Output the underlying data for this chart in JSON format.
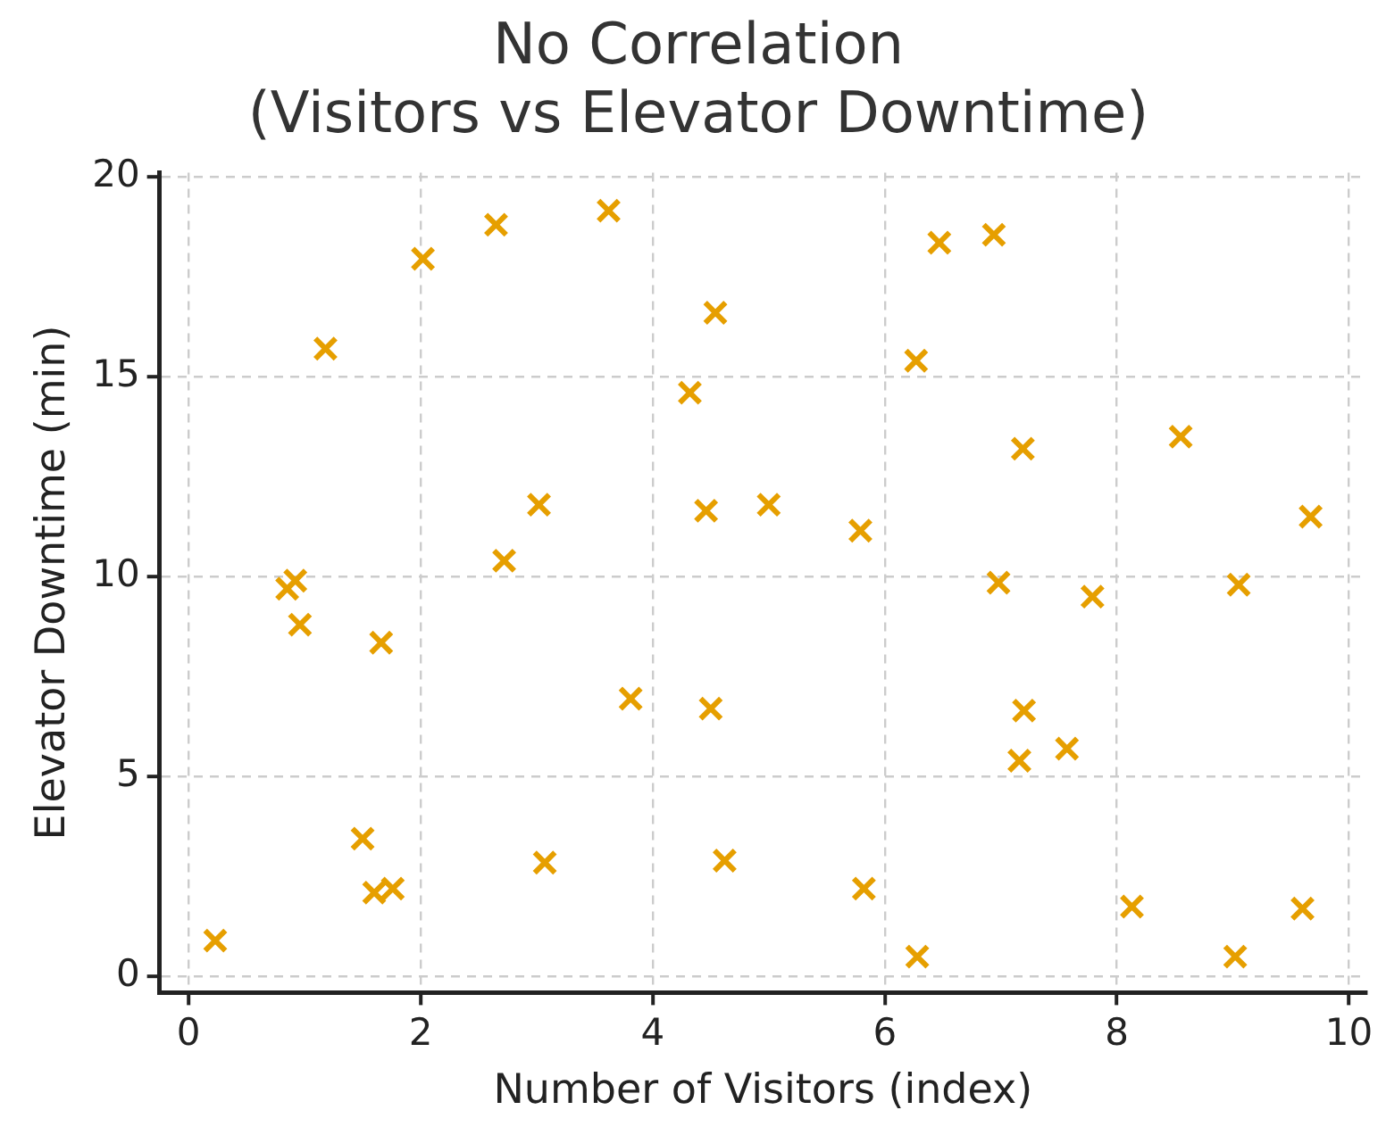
{
  "chart_data": {
    "type": "scatter",
    "title": "No Correlation\n(Visitors vs Elevator Downtime)",
    "xlabel": "Number of Visitors (index)",
    "ylabel": "Elevator Downtime (min)",
    "x": [
      0.23,
      0.85,
      0.92,
      0.96,
      1.18,
      1.66,
      1.5,
      1.6,
      1.76,
      2.02,
      2.65,
      2.72,
      3.02,
      3.07,
      3.62,
      3.81,
      4.32,
      4.46,
      4.5,
      4.54,
      4.62,
      5.0,
      5.79,
      5.82,
      6.27,
      6.28,
      6.47,
      6.94,
      6.98,
      7.16,
      7.2,
      7.19,
      7.57,
      7.79,
      8.13,
      8.55,
      9.05,
      9.02,
      9.6,
      9.67
    ],
    "series": [
      {
        "color": "#e69f00",
        "values": [
          0.9,
          9.7,
          9.9,
          8.8,
          15.7,
          8.35,
          3.45,
          2.1,
          2.2,
          17.95,
          18.8,
          10.4,
          11.8,
          2.85,
          19.15,
          6.95,
          14.6,
          11.65,
          6.7,
          16.6,
          2.9,
          11.8,
          11.15,
          2.2,
          15.4,
          0.5,
          18.35,
          18.55,
          9.85,
          5.4,
          6.65,
          13.2,
          5.7,
          9.5,
          1.75,
          13.5,
          9.8,
          0.5,
          1.7,
          11.5
        ]
      }
    ],
    "marker": "cross",
    "grid": true,
    "xlim": [
      -0.25,
      10.15
    ],
    "ylim": [
      -0.4,
      20.1
    ],
    "xticks": [
      0,
      2,
      4,
      6,
      8,
      10
    ],
    "yticks": [
      0,
      5,
      10,
      15,
      20
    ]
  }
}
